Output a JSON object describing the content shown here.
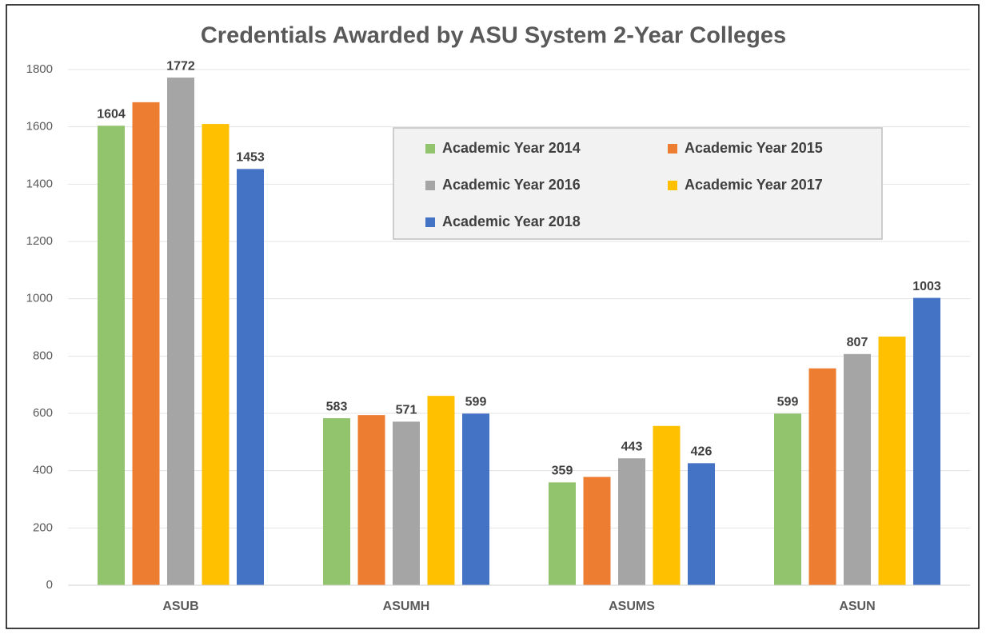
{
  "chart_data": {
    "type": "bar",
    "title": "Credentials Awarded by ASU System 2-Year Colleges",
    "categories": [
      "ASUB",
      "ASUMH",
      "ASUMS",
      "ASUN"
    ],
    "series": [
      {
        "name": "Academic Year 2014",
        "color": "#92c46d",
        "values": [
          1604,
          583,
          359,
          599
        ],
        "value_labels": [
          "1604",
          "583",
          "359",
          "599"
        ]
      },
      {
        "name": "Academic Year 2015",
        "color": "#ed7d31",
        "values": [
          1686,
          594,
          378,
          757
        ],
        "value_labels": [
          null,
          null,
          null,
          null
        ]
      },
      {
        "name": "Academic Year 2016",
        "color": "#a5a5a5",
        "values": [
          1772,
          571,
          443,
          807
        ],
        "value_labels": [
          "1772",
          "571",
          "443",
          "807"
        ]
      },
      {
        "name": "Academic Year 2017",
        "color": "#ffc000",
        "values": [
          1610,
          661,
          556,
          868
        ],
        "value_labels": [
          null,
          null,
          null,
          null
        ]
      },
      {
        "name": "Academic Year 2018",
        "color": "#4472c4",
        "values": [
          1453,
          599,
          426,
          1003
        ],
        "value_labels": [
          "1453",
          "599",
          "426",
          "1003"
        ]
      }
    ],
    "ylim": [
      0,
      1800
    ],
    "yticks": [
      0,
      200,
      400,
      600,
      800,
      1000,
      1200,
      1400,
      1600,
      1800
    ],
    "grid": true
  }
}
